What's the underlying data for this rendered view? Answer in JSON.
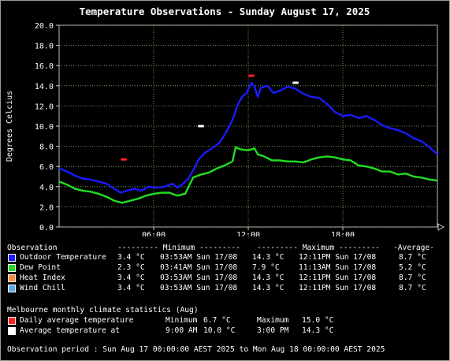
{
  "chart_data": {
    "type": "line",
    "title": "Temperature Observations - Sunday August 17, 2025",
    "ylabel": "Degrees Celcius",
    "ylim": [
      0,
      20
    ],
    "yticks": [
      "20.0",
      "18.0",
      "16.0",
      "14.0",
      "12.0",
      "10.0",
      "8.0",
      "6.0",
      "4.0",
      "2.0",
      "0.0"
    ],
    "xlim": [
      0,
      24
    ],
    "xticks": [
      {
        "x": 6,
        "label": "06:00"
      },
      {
        "x": 12,
        "label": "12:00"
      },
      {
        "x": 18,
        "label": "18:00"
      }
    ],
    "grid": true,
    "series": [
      {
        "name": "Outdoor Temperature",
        "color": "#1a1aff",
        "points": [
          [
            0,
            5.8
          ],
          [
            0.5,
            5.5
          ],
          [
            1,
            5.1
          ],
          [
            1.5,
            4.8
          ],
          [
            2,
            4.7
          ],
          [
            2.5,
            4.5
          ],
          [
            3,
            4.3
          ],
          [
            3.5,
            3.8
          ],
          [
            3.9,
            3.4
          ],
          [
            4.3,
            3.6
          ],
          [
            4.8,
            3.8
          ],
          [
            5.2,
            3.6
          ],
          [
            5.7,
            4.0
          ],
          [
            6.2,
            3.9
          ],
          [
            6.7,
            4.0
          ],
          [
            7.2,
            4.3
          ],
          [
            7.5,
            3.9
          ],
          [
            7.8,
            4.2
          ],
          [
            8.2,
            4.8
          ],
          [
            8.5,
            5.6
          ],
          [
            8.9,
            6.8
          ],
          [
            9.3,
            7.4
          ],
          [
            9.8,
            7.9
          ],
          [
            10.2,
            8.4
          ],
          [
            10.6,
            9.4
          ],
          [
            11,
            10.6
          ],
          [
            11.3,
            12.0
          ],
          [
            11.6,
            12.9
          ],
          [
            11.9,
            13.3
          ],
          [
            12.2,
            14.3
          ],
          [
            12.4,
            13.9
          ],
          [
            12.6,
            12.9
          ],
          [
            12.8,
            13.8
          ],
          [
            13.2,
            14.0
          ],
          [
            13.6,
            13.3
          ],
          [
            14,
            13.5
          ],
          [
            14.5,
            13.9
          ],
          [
            15,
            13.7
          ],
          [
            15.5,
            13.2
          ],
          [
            16,
            12.9
          ],
          [
            16.5,
            12.8
          ],
          [
            17,
            12.2
          ],
          [
            17.5,
            11.4
          ],
          [
            18,
            11.0
          ],
          [
            18.5,
            11.1
          ],
          [
            19,
            10.8
          ],
          [
            19.5,
            11.0
          ],
          [
            20,
            10.6
          ],
          [
            20.5,
            10.1
          ],
          [
            21,
            9.8
          ],
          [
            21.5,
            9.6
          ],
          [
            22,
            9.3
          ],
          [
            22.5,
            8.8
          ],
          [
            23,
            8.5
          ],
          [
            23.5,
            7.9
          ],
          [
            24,
            7.2
          ]
        ]
      },
      {
        "name": "Dew Point",
        "color": "#22dd22",
        "points": [
          [
            0,
            4.5
          ],
          [
            0.5,
            4.2
          ],
          [
            1,
            3.8
          ],
          [
            1.5,
            3.6
          ],
          [
            2,
            3.5
          ],
          [
            2.5,
            3.3
          ],
          [
            3,
            3.0
          ],
          [
            3.5,
            2.6
          ],
          [
            4,
            2.4
          ],
          [
            4.5,
            2.6
          ],
          [
            5,
            2.8
          ],
          [
            5.5,
            3.1
          ],
          [
            6,
            3.3
          ],
          [
            6.5,
            3.4
          ],
          [
            7,
            3.4
          ],
          [
            7.5,
            3.1
          ],
          [
            8,
            3.3
          ],
          [
            8.5,
            4.9
          ],
          [
            9,
            5.2
          ],
          [
            9.5,
            5.4
          ],
          [
            10,
            5.8
          ],
          [
            10.5,
            6.1
          ],
          [
            11,
            6.5
          ],
          [
            11.2,
            7.9
          ],
          [
            11.5,
            7.7
          ],
          [
            12,
            7.6
          ],
          [
            12.4,
            7.8
          ],
          [
            12.6,
            7.2
          ],
          [
            13,
            7.0
          ],
          [
            13.5,
            6.6
          ],
          [
            14,
            6.6
          ],
          [
            14.5,
            6.5
          ],
          [
            15,
            6.5
          ],
          [
            15.5,
            6.4
          ],
          [
            16,
            6.7
          ],
          [
            16.5,
            6.9
          ],
          [
            17,
            7.0
          ],
          [
            17.5,
            6.9
          ],
          [
            18,
            6.7
          ],
          [
            18.5,
            6.6
          ],
          [
            19,
            6.1
          ],
          [
            19.5,
            6.0
          ],
          [
            20,
            5.8
          ],
          [
            20.5,
            5.5
          ],
          [
            21,
            5.5
          ],
          [
            21.5,
            5.2
          ],
          [
            22,
            5.3
          ],
          [
            22.5,
            5.0
          ],
          [
            23,
            4.9
          ],
          [
            23.5,
            4.7
          ],
          [
            24,
            4.6
          ]
        ]
      }
    ],
    "markers": [
      {
        "x": 4.1,
        "y": 6.7,
        "color": "#ff2222"
      },
      {
        "x": 12.2,
        "y": 15.0,
        "color": "#ff2222"
      },
      {
        "x": 9.0,
        "y": 10.0,
        "color": "#ffffff"
      },
      {
        "x": 15.0,
        "y": 14.3,
        "color": "#ffffff"
      }
    ]
  },
  "legend": {
    "header": {
      "observation": "Observation",
      "minimum": "--------- Minimum ---------",
      "maximum": "--------- Maximum ---------",
      "average": "-Average-"
    },
    "rows": [
      {
        "color": "#1a1aff",
        "name": "Outdoor Temperature",
        "min_val": "3.4 °C",
        "min_time": "03:53AM Sun 17/08",
        "max_val": "14.3 °C",
        "max_time": "12:11PM Sun 17/08",
        "avg": "8.7 °C"
      },
      {
        "color": "#22dd22",
        "name": "Dew Point",
        "min_val": "2.3 °C",
        "min_time": "03:41AM Sun 17/08",
        "max_val": "7.9 °C",
        "max_time": "11:13AM Sun 17/08",
        "avg": "5.2 °C"
      },
      {
        "color": "#ff8c3a",
        "name": "Heat Index",
        "min_val": "3.4 °C",
        "min_time": "03:53AM Sun 17/08",
        "max_val": "14.3 °C",
        "max_time": "12:11PM Sun 17/08",
        "avg": "8.7 °C"
      },
      {
        "color": "#5aa8e6",
        "name": "Wind Chill",
        "min_val": "3.4 °C",
        "min_time": "03:53AM Sun 17/08",
        "max_val": "14.3 °C",
        "max_time": "12:11PM Sun 17/08",
        "avg": "8.7 °C"
      }
    ]
  },
  "climate": {
    "title": "Melbourne monthly climate statistics (Aug)",
    "rows": [
      {
        "color": "#ff2222",
        "label": "Daily average temperature",
        "c1": "Minimum",
        "c2": "6.7 °C",
        "c3": "Maximum",
        "c4": "15.0 °C"
      },
      {
        "color": "#ffffff",
        "label": "Average temperature at",
        "c1": "9:00 AM",
        "c2": "10.0 °C",
        "c3": "3:00 PM",
        "c4": "14.3 °C"
      }
    ]
  },
  "period": "Observation period : Sun Aug 17 00:00:00 AEST 2025 to Mon Aug 18 00:00:00 AEST 2025"
}
